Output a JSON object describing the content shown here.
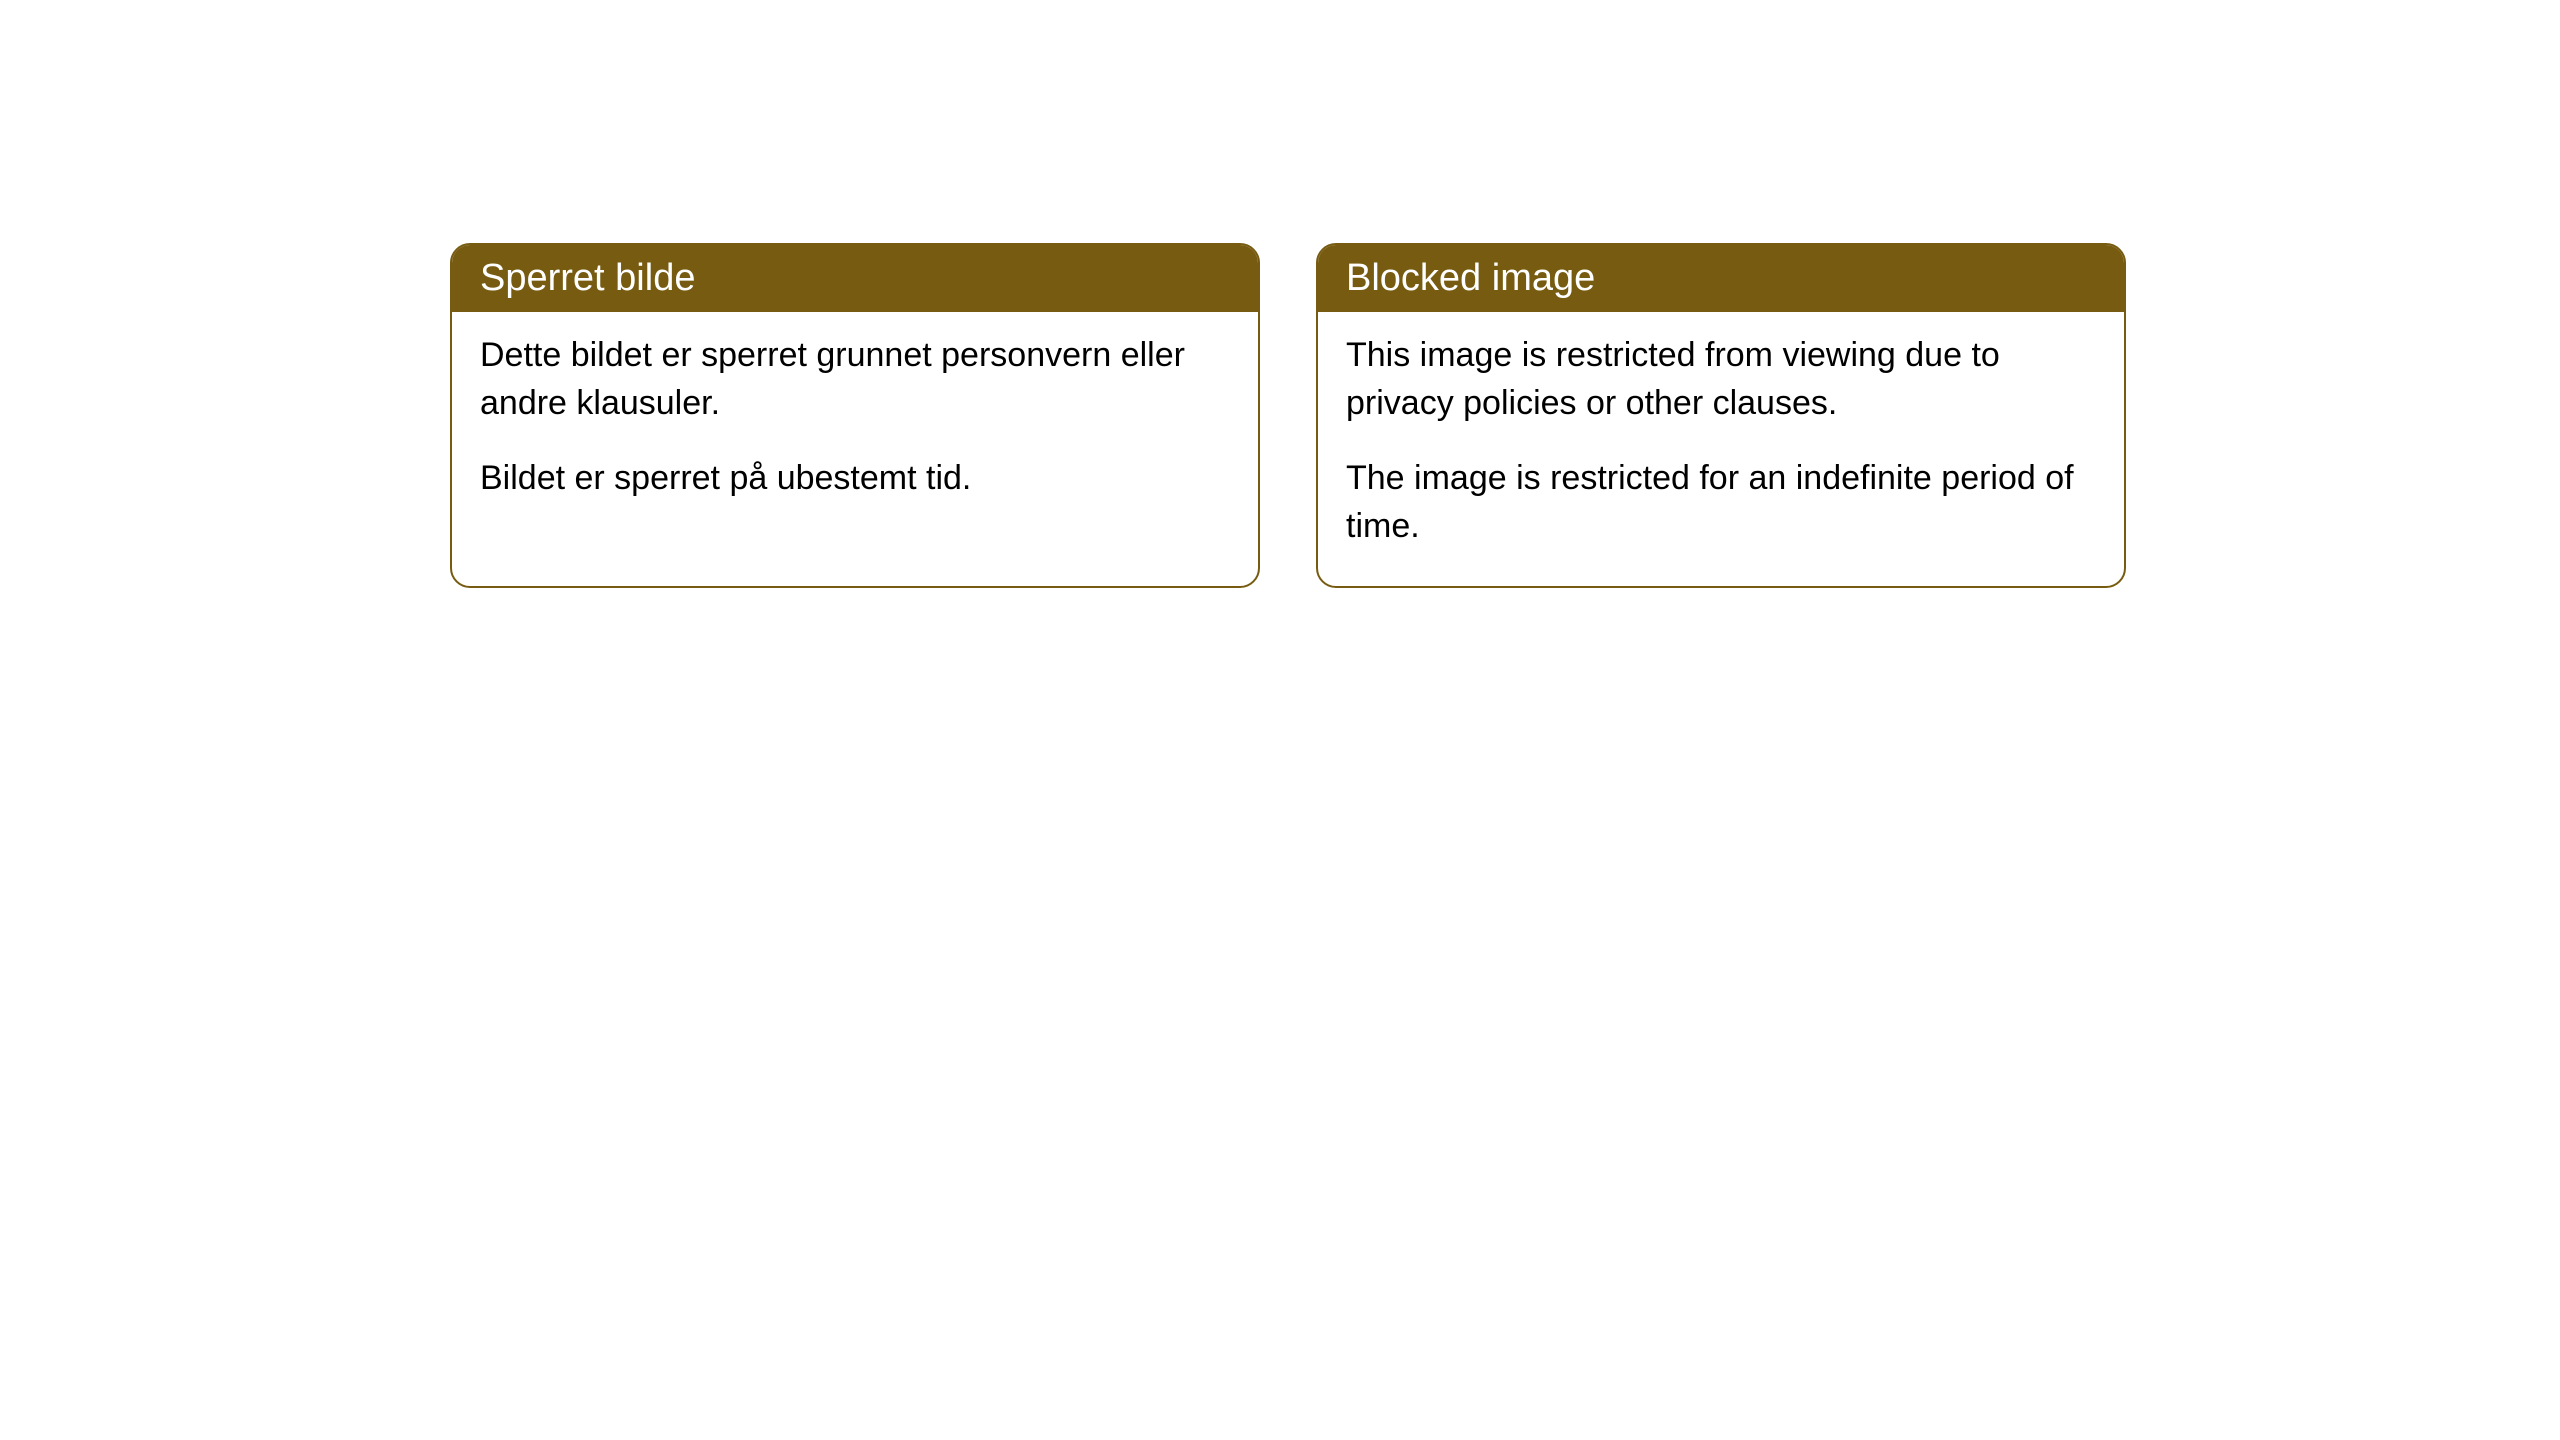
{
  "cards": [
    {
      "title": "Sperret bilde",
      "paragraph1": "Dette bildet er sperret grunnet personvern eller andre klausuler.",
      "paragraph2": "Bildet er sperret på ubestemt tid."
    },
    {
      "title": "Blocked image",
      "paragraph1": "This image is restricted from viewing due to privacy policies or other clauses.",
      "paragraph2": "The image is restricted for an indefinite period of time."
    }
  ],
  "style": {
    "header_background": "#775b10",
    "header_text_color": "#ffffff",
    "border_color": "#775b10",
    "body_background": "#ffffff",
    "body_text_color": "#000000",
    "border_radius": 20,
    "header_fontsize": 38,
    "body_fontsize": 34
  }
}
